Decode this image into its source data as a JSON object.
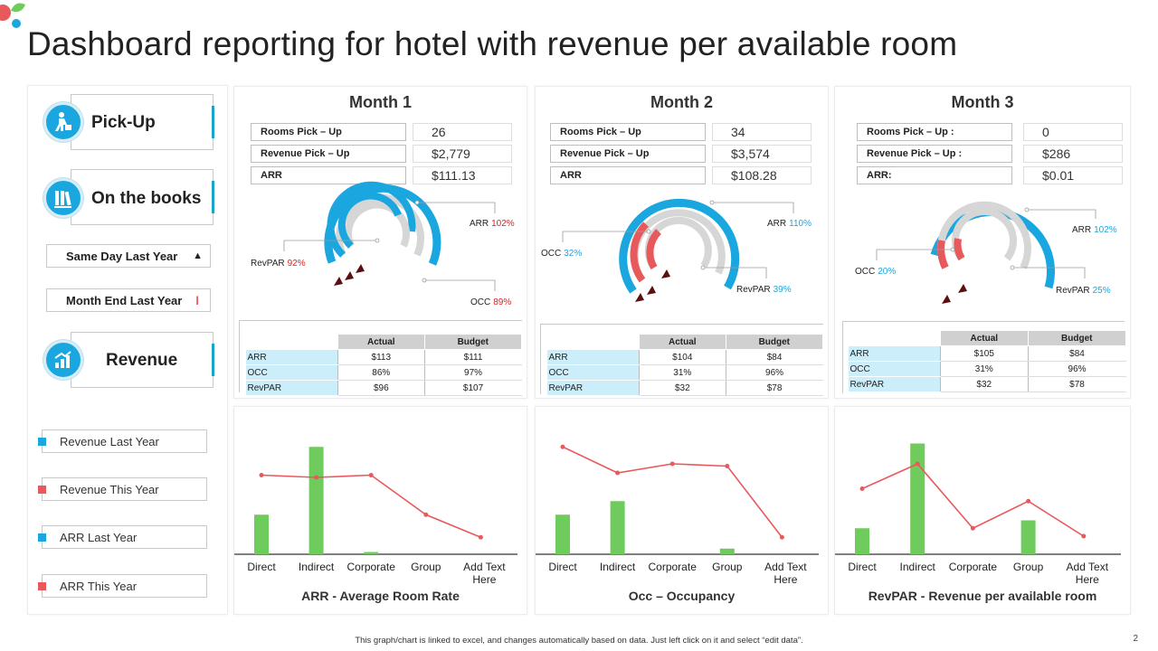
{
  "title": "Dashboard reporting for hotel with revenue per available room",
  "colors": {
    "blue": "#1aa6df",
    "red": "#e8595b",
    "green": "#6fcb5c",
    "gray": "#d6d6d6",
    "table_row": "#cbeefa"
  },
  "left_panel": {
    "sections": [
      {
        "label": "Pick-Up",
        "icon": "person-lifting-box-icon"
      },
      {
        "label": "On the books",
        "icon": "books-icon"
      },
      {
        "label": "Revenue",
        "icon": "rising-bar-chart-icon"
      }
    ],
    "filters": [
      {
        "label": "Same Day Last Year",
        "marker": "▲"
      },
      {
        "label": "Month End Last Year",
        "marker": "I"
      }
    ],
    "legend": [
      {
        "label": "Revenue  Last Year",
        "color": "#1aa6df"
      },
      {
        "label": "Revenue  This Year",
        "color": "#e8595b"
      },
      {
        "label": "ARR Last Year",
        "color": "#1aa6df"
      },
      {
        "label": "ARR This Year",
        "color": "#e8595b"
      }
    ]
  },
  "months": [
    {
      "title": "Month 1",
      "pickup": [
        {
          "label": "Rooms Pick – Up",
          "value": "26"
        },
        {
          "label": "Revenue Pick – Up",
          "value": "$2,779"
        },
        {
          "label": "ARR",
          "value": "$111.13"
        }
      ],
      "gauge": {
        "labels": [
          {
            "name": "ARR",
            "pct": "102%",
            "pct_color": "#e02020"
          },
          {
            "name": "RevPAR",
            "pct": "92%",
            "pct_color": "#e02020"
          },
          {
            "name": "OCC",
            "pct": "89%",
            "pct_color": "#e02020"
          }
        ],
        "ring_colors": [
          "#1aa6df",
          "#1aa6df",
          "#1aa6df"
        ],
        "ring_fill": [
          1.0,
          0.92,
          0.89
        ]
      },
      "table": {
        "headers": [
          "Actual",
          "Budget"
        ],
        "rows": [
          {
            "label": "ARR",
            "actual": "$113",
            "budget": "$111"
          },
          {
            "label": "OCC",
            "actual": "86%",
            "budget": "97%"
          },
          {
            "label": "RevPAR",
            "actual": "$96",
            "budget": "$107"
          }
        ]
      }
    },
    {
      "title": "Month 2",
      "pickup": [
        {
          "label": "Rooms Pick – Up",
          "value": "34"
        },
        {
          "label": "Revenue Pick – Up",
          "value": "$3,574"
        },
        {
          "label": "ARR",
          "value": "$108.28"
        }
      ],
      "gauge": {
        "labels": [
          {
            "name": "ARR",
            "pct": "110%",
            "pct_color": "#1aa6df"
          },
          {
            "name": "OCC",
            "pct": "32%",
            "pct_color": "#1aa6df"
          },
          {
            "name": "RevPAR",
            "pct": "39%",
            "pct_color": "#1aa6df"
          }
        ],
        "ring_colors": [
          "#1aa6df",
          "#e8595b",
          "#e8595b"
        ],
        "ring_fill": [
          1.0,
          0.32,
          0.39
        ]
      },
      "table": {
        "headers": [
          "Actual",
          "Budget"
        ],
        "rows": [
          {
            "label": "ARR",
            "actual": "$104",
            "budget": "$84"
          },
          {
            "label": "OCC",
            "actual": "31%",
            "budget": "96%"
          },
          {
            "label": "RevPAR",
            "actual": "$32",
            "budget": "$78"
          }
        ]
      }
    },
    {
      "title": "Month 3",
      "pickup": [
        {
          "label": "Rooms Pick – Up :",
          "value": "0"
        },
        {
          "label": "Revenue Pick – Up :",
          "value": "$286"
        },
        {
          "label": "ARR:",
          "value": "$0.01"
        }
      ],
      "gauge": {
        "labels": [
          {
            "name": "ARR",
            "pct": "102%",
            "pct_color": "#1aa6df"
          },
          {
            "name": "OCC",
            "pct": "20%",
            "pct_color": "#1aa6df"
          },
          {
            "name": "RevPAR",
            "pct": "25%",
            "pct_color": "#1aa6df"
          }
        ],
        "ring_colors": [
          "#1aa6df",
          "#e8595b",
          "#e8595b"
        ],
        "ring_fill": [
          1.0,
          0.2,
          0.25
        ]
      },
      "table": {
        "headers": [
          "Actual",
          "Budget"
        ],
        "rows": [
          {
            "label": "ARR",
            "actual": "$105",
            "budget": "$84"
          },
          {
            "label": "OCC",
            "actual": "31%",
            "budget": "96%"
          },
          {
            "label": "RevPAR",
            "actual": "$32",
            "budget": "$78"
          }
        ]
      }
    }
  ],
  "chart_data": [
    {
      "type": "bar",
      "title": "ARR - Average Room Rate",
      "categories": [
        "Direct",
        "Indirect",
        "Corporate",
        "Group",
        "Add Text Here"
      ],
      "series": [
        {
          "type": "bar",
          "color": "#6fcb5c",
          "values": [
            3.5,
            9.5,
            0.2,
            0,
            0
          ]
        },
        {
          "type": "line",
          "color": "#e8595b",
          "values": [
            7,
            6.8,
            7,
            3.5,
            1.5
          ]
        }
      ],
      "ylim": [
        0,
        10
      ]
    },
    {
      "type": "bar",
      "title": "Occ – Occupancy",
      "categories": [
        "Direct",
        "Indirect",
        "Corporate",
        "Group",
        "Add Text Here"
      ],
      "series": [
        {
          "type": "bar",
          "color": "#6fcb5c",
          "values": [
            3.5,
            4.7,
            0,
            0.5,
            0
          ]
        },
        {
          "type": "line",
          "color": "#e8595b",
          "values": [
            9.5,
            7.2,
            8,
            7.8,
            1.5
          ]
        }
      ],
      "ylim": [
        0,
        10
      ]
    },
    {
      "type": "bar",
      "title": "RevPAR - Revenue per available room",
      "categories": [
        "Direct",
        "Indirect",
        "Corporate",
        "Group",
        "Add Text Here"
      ],
      "series": [
        {
          "type": "bar",
          "color": "#6fcb5c",
          "values": [
            2.3,
            9.8,
            0,
            3,
            0
          ]
        },
        {
          "type": "line",
          "color": "#e8595b",
          "values": [
            5.8,
            8,
            2.3,
            4.7,
            1.6
          ]
        }
      ],
      "ylim": [
        0,
        10
      ]
    }
  ],
  "footer": {
    "note": "This graph/chart is linked to excel, and changes automatically based on data. Just left click on it and select “edit data”.",
    "page_number": "2"
  }
}
